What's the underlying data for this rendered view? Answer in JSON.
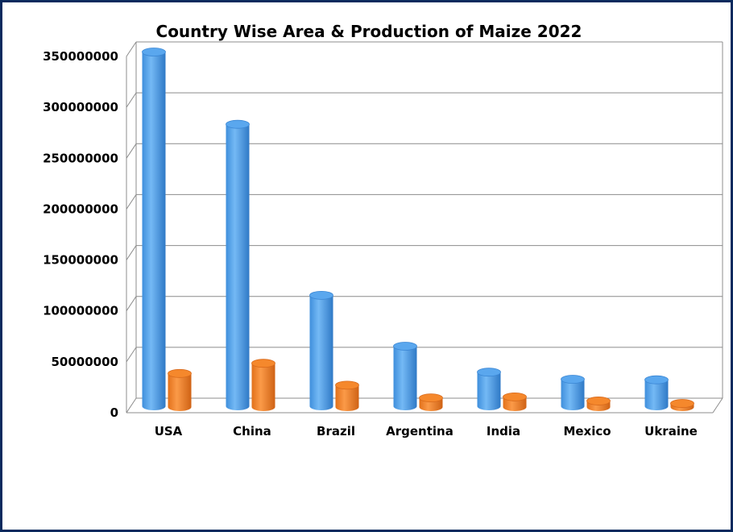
{
  "chart_data": {
    "type": "bar",
    "title": "Country Wise Area & Production of Maize 2022",
    "categories": [
      "USA",
      "China",
      "Brazil",
      "Argentina",
      "India",
      "Mexico",
      "Ukraine"
    ],
    "series": [
      {
        "color": "#5aa7ee",
        "values": [
          348000000,
          277000000,
          109000000,
          59000000,
          33500000,
          26500000,
          26000000
        ]
      },
      {
        "color": "#f5882c",
        "values": [
          33000000,
          43000000,
          21500000,
          9000000,
          10000000,
          6000000,
          3500000
        ]
      }
    ],
    "ylim": [
      0,
      350000000
    ],
    "yticks": [
      "0",
      "50000000",
      "100000000",
      "150000000",
      "200000000",
      "250000000",
      "300000000",
      "350000000"
    ],
    "grid": true,
    "style": "3d-cylinder"
  },
  "colors": {
    "border": "#0a2a5e",
    "grid": "#8c8c8c"
  }
}
